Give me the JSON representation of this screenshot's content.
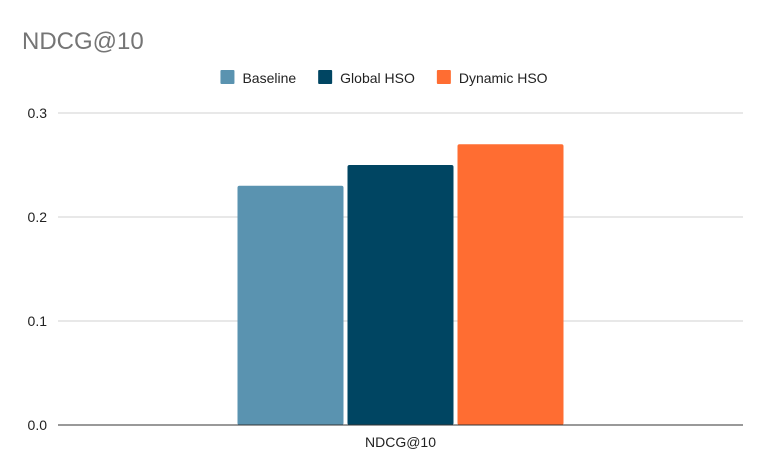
{
  "chart_data": {
    "type": "bar",
    "title": "NDCG@10",
    "categories": [
      "NDCG@10"
    ],
    "series": [
      {
        "name": "Baseline",
        "values": [
          0.23
        ],
        "color": "#5a93b0"
      },
      {
        "name": "Global HSO",
        "values": [
          0.25
        ],
        "color": "#004562"
      },
      {
        "name": "Dynamic HSO",
        "values": [
          0.27
        ],
        "color": "#ff6d32"
      }
    ],
    "xlabel": "",
    "ylabel": "",
    "ylim": [
      0,
      0.3
    ],
    "yticks": [
      "0.0",
      "0.1",
      "0.2",
      "0.3"
    ],
    "ytick_values": [
      0,
      0.1,
      0.2,
      0.3
    ],
    "grid": true,
    "legend_position": "top-center"
  }
}
